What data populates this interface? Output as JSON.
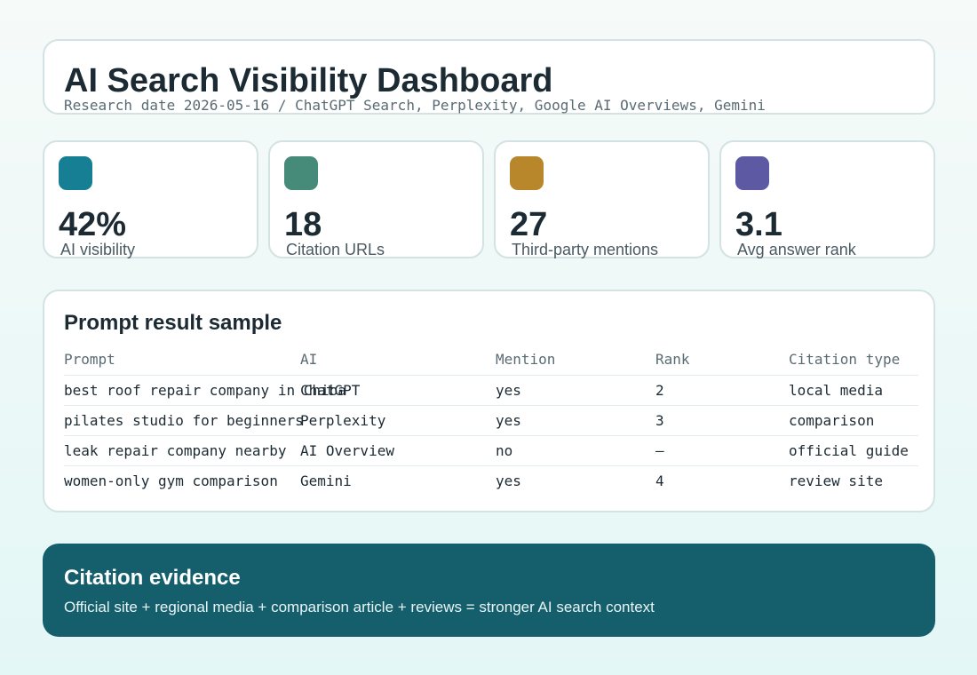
{
  "header": {
    "title": "AI Search Visibility Dashboard",
    "subtitle": "Research date 2026-05-16 / ChatGPT Search, Perplexity, Google AI Overviews, Gemini"
  },
  "kpis": [
    {
      "value": "42%",
      "label": "AI visibility",
      "color": "#177f94"
    },
    {
      "value": "18",
      "label": "Citation URLs",
      "color": "#468a79"
    },
    {
      "value": "27",
      "label": "Third-party mentions",
      "color": "#b8862b"
    },
    {
      "value": "3.1",
      "label": "Avg answer rank",
      "color": "#5d59a3"
    }
  ],
  "prompt_table": {
    "title": "Prompt result sample",
    "columns": [
      "Prompt",
      "AI",
      "Mention",
      "Rank",
      "Citation type"
    ],
    "rows": [
      [
        "best roof repair company in Chiba",
        "ChatGPT",
        "yes",
        "2",
        "local media"
      ],
      [
        "pilates studio for beginners",
        "Perplexity",
        "yes",
        "3",
        "comparison"
      ],
      [
        "leak repair company nearby",
        "AI Overview",
        "no",
        "—",
        "official guide"
      ],
      [
        "women-only gym comparison",
        "Gemini",
        "yes",
        "4",
        "review site"
      ]
    ]
  },
  "evidence": {
    "title": "Citation evidence",
    "text": "Official site + regional media + comparison article + reviews = stronger AI search context"
  }
}
